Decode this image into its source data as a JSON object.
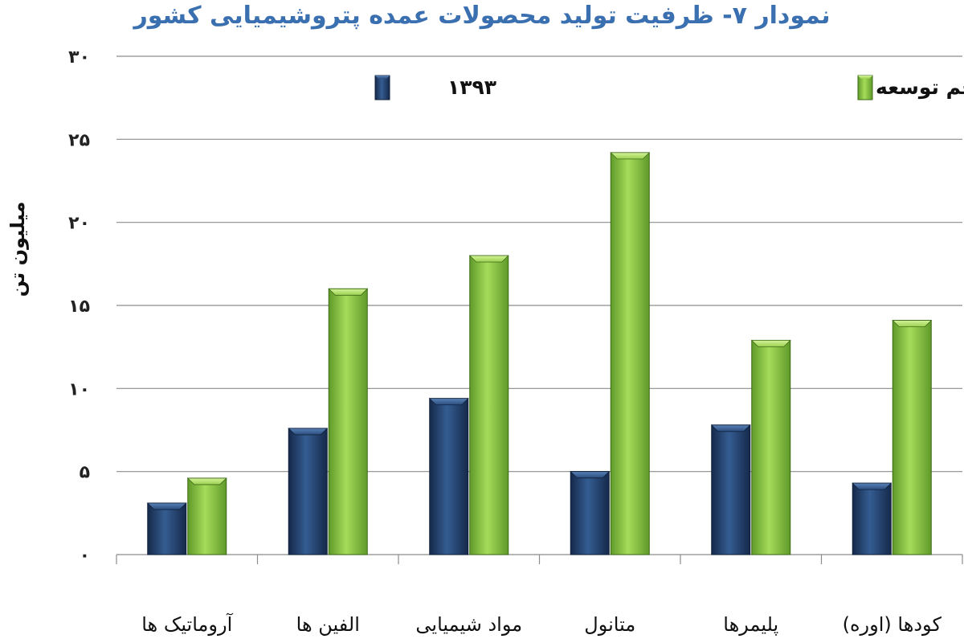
{
  "chart_data": {
    "type": "bar",
    "title": "نمودار ۷- ظرفیت تولید محصولات عمده پتروشیمیایی کشور",
    "ylabel": "میلیون تن",
    "xlabel": "",
    "ylim": [
      0,
      30
    ],
    "yticks": [
      0,
      5,
      10,
      15,
      20,
      25,
      30
    ],
    "ytick_labels": [
      "۰",
      "۵",
      "۱۰",
      "۱۵",
      "۲۰",
      "۲۵",
      "۳۰"
    ],
    "categories": [
      "آروماتیک ها",
      "الفین ها",
      "مواد شیمیایی",
      "متانول",
      "پلیمرها",
      "کودها (اوره)"
    ],
    "series": [
      {
        "name": "۱۳۹۳",
        "color": "#1f3f6b",
        "values": [
          3.1,
          7.6,
          9.4,
          5.0,
          7.8,
          4.3
        ]
      },
      {
        "name": "تکمیل طرحهای برنامه پنجم توسعه",
        "color": "#8cc63f",
        "values": [
          4.6,
          16.0,
          18.0,
          24.2,
          12.9,
          14.1
        ]
      }
    ],
    "grid": true,
    "legend_position": "top"
  }
}
